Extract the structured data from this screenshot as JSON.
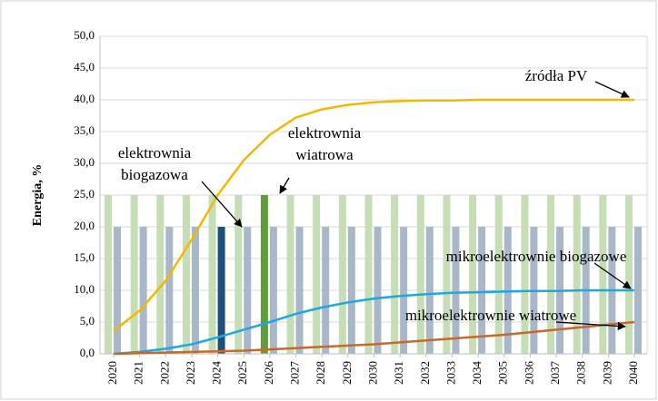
{
  "chart_data": {
    "type": "combo",
    "y_label": "Energia, %",
    "categories": [
      "2020",
      "2021",
      "2022",
      "2023",
      "2024",
      "2025",
      "2026",
      "2027",
      "2028",
      "2029",
      "2030",
      "2031",
      "2032",
      "2033",
      "2034",
      "2035",
      "2036",
      "2037",
      "2038",
      "2039",
      "2040"
    ],
    "ylim": [
      0,
      50
    ],
    "yticks": [
      {
        "value": 0,
        "label": "0,0"
      },
      {
        "value": 5,
        "label": "5,0"
      },
      {
        "value": 10,
        "label": "10,0"
      },
      {
        "value": 15,
        "label": "15,0"
      },
      {
        "value": 20,
        "label": "20,0"
      },
      {
        "value": 25,
        "label": "25,0"
      },
      {
        "value": 30,
        "label": "30,0"
      },
      {
        "value": 35,
        "label": "35,0"
      },
      {
        "value": 40,
        "label": "40,0"
      },
      {
        "value": 45,
        "label": "45,0"
      },
      {
        "value": 50,
        "label": "50,0"
      }
    ],
    "grid": true,
    "series": [
      {
        "type": "bar",
        "offset": "left",
        "color": "#c5deb5",
        "highlight": {
          "index": 6,
          "color": "#5e9e3a"
        },
        "values": [
          25,
          25,
          25,
          25,
          25,
          25,
          25,
          25,
          25,
          25,
          25,
          25,
          25,
          25,
          25,
          25,
          25,
          25,
          25,
          25,
          25
        ]
      },
      {
        "type": "bar",
        "offset": "right",
        "color": "#a9b8c9",
        "highlight": {
          "index": 4,
          "color": "#1f4e79"
        },
        "values": [
          20,
          20,
          20,
          20,
          20,
          20,
          20,
          20,
          20,
          20,
          20,
          20,
          20,
          20,
          20,
          20,
          20,
          20,
          20,
          20,
          20
        ]
      },
      {
        "type": "line",
        "color": "#f5b800",
        "values": [
          3.6,
          6.8,
          11.5,
          18,
          25,
          30.5,
          34.5,
          37.2,
          38.5,
          39.2,
          39.6,
          39.8,
          39.9,
          39.9,
          40,
          40,
          40,
          40,
          40,
          40,
          40
        ]
      },
      {
        "type": "line",
        "color": "#1ea7e1",
        "values": [
          0,
          0.3,
          0.8,
          1.5,
          2.6,
          3.8,
          5,
          6.3,
          7.3,
          8.1,
          8.7,
          9.1,
          9.4,
          9.6,
          9.7,
          9.8,
          9.9,
          9.9,
          10,
          10,
          10
        ]
      },
      {
        "type": "line",
        "color": "#c8692a",
        "values": [
          0,
          0.1,
          0.2,
          0.3,
          0.4,
          0.5,
          0.7,
          0.9,
          1.1,
          1.3,
          1.5,
          1.8,
          2.1,
          2.4,
          2.7,
          3,
          3.4,
          3.8,
          4.2,
          4.6,
          5
        ]
      }
    ],
    "annotations": [
      {
        "lines": [
          "źródła PV"
        ]
      },
      {
        "lines": [
          "elektrownia",
          "biogazowa"
        ]
      },
      {
        "lines": [
          "elektrownia",
          "wiatrowa"
        ]
      },
      {
        "lines": [
          "mikroelektrownie biogazowe"
        ]
      },
      {
        "lines": [
          "mikroelektrownie wiatrowe"
        ]
      }
    ]
  }
}
